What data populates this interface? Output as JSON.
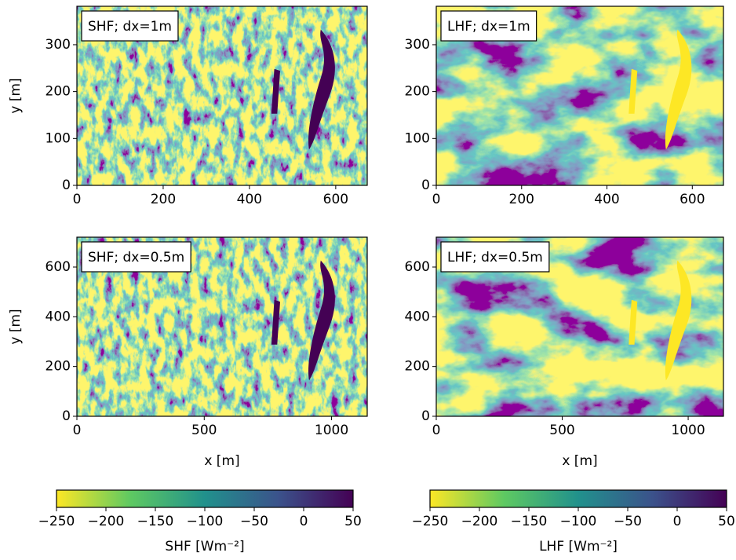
{
  "chart_data": [
    {
      "type": "heatmap",
      "title": "SHF; dx=1m",
      "xlim": [
        0,
        673
      ],
      "ylim": [
        0,
        382
      ],
      "xticks": [
        0,
        200,
        400,
        600
      ],
      "yticks": [
        0,
        100,
        200,
        300
      ],
      "ylabel": "y [m]",
      "field": "SHF"
    },
    {
      "type": "heatmap",
      "title": "LHF; dx=1m",
      "xlim": [
        0,
        673
      ],
      "ylim": [
        0,
        382
      ],
      "xticks": [
        0,
        200,
        400,
        600
      ],
      "yticks": [
        0,
        100,
        200,
        300
      ],
      "field": "LHF"
    },
    {
      "type": "heatmap",
      "title": "SHF; dx=0.5m",
      "xlim": [
        0,
        1140
      ],
      "ylim": [
        0,
        720
      ],
      "xticks": [
        0,
        500,
        1000
      ],
      "yticks": [
        0,
        200,
        400,
        600
      ],
      "xlabel": "x [m]",
      "ylabel": "y [m]",
      "field": "SHF"
    },
    {
      "type": "heatmap",
      "title": "LHF; dx=0.5m",
      "xlim": [
        0,
        1140
      ],
      "ylim": [
        0,
        720
      ],
      "xticks": [
        0,
        500,
        1000
      ],
      "yticks": [
        0,
        200,
        400,
        600
      ],
      "xlabel": "x [m]",
      "field": "LHF"
    },
    {
      "type": "colorbar",
      "xlim": [
        -250,
        50
      ],
      "xticks": [
        {
          "value": -250,
          "label": "−250"
        },
        {
          "value": -200,
          "label": "−200"
        },
        {
          "value": -150,
          "label": "−150"
        },
        {
          "value": -100,
          "label": "−100"
        },
        {
          "value": -50,
          "label": "−50"
        },
        0,
        50
      ],
      "xlabel": "SHF [Wm⁻²]",
      "colors": [
        "#fde725",
        "#5ec962",
        "#21918c",
        "#3b528b",
        "#440154"
      ]
    },
    {
      "type": "colorbar",
      "xlim": [
        -250,
        50
      ],
      "xticks": [
        {
          "value": -250,
          "label": "−250"
        },
        {
          "value": -200,
          "label": "−200"
        },
        {
          "value": -150,
          "label": "−150"
        },
        {
          "value": -100,
          "label": "−100"
        },
        {
          "value": -50,
          "label": "−50"
        },
        0,
        50
      ],
      "xlabel": "LHF [Wm⁻²]",
      "colors": [
        "#fde725",
        "#5ec962",
        "#21918c",
        "#3b528b",
        "#440154"
      ]
    }
  ]
}
